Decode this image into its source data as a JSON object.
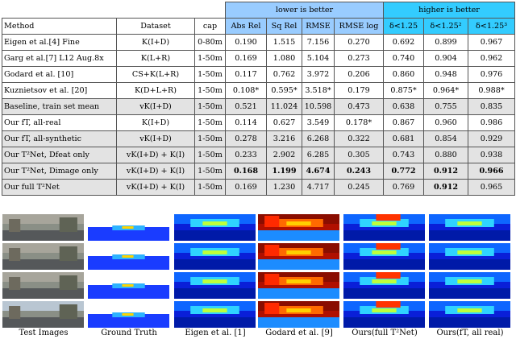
{
  "table": {
    "group_headers": {
      "lower": "lower is better",
      "higher": "higher is better"
    },
    "headers": [
      "Method",
      "Dataset",
      "cap",
      "Abs Rel",
      "Sq Rel",
      "RMSE",
      "RMSE log",
      "δ<1.25",
      "δ<1.25²",
      "δ<1.25³"
    ],
    "rows": [
      {
        "method": "Eigen et al.[4] Fine",
        "dataset": "K(I+D)",
        "cap": "0-80m",
        "abs_rel": "0.190",
        "sq_rel": "1.515",
        "rmse": "7.156",
        "rmse_log": "0.270",
        "d1": "0.692",
        "d2": "0.899",
        "d3": "0.967"
      },
      {
        "method": "Garg et al.[7] L12 Aug.8x",
        "dataset": "K(L+R)",
        "cap": "1-50m",
        "abs_rel": "0.169",
        "sq_rel": "1.080",
        "rmse": "5.104",
        "rmse_log": "0.273",
        "d1": "0.740",
        "d2": "0.904",
        "d3": "0.962"
      },
      {
        "method": "Godard et al. [10]",
        "dataset": "CS+K(L+R)",
        "cap": "1-50m",
        "abs_rel": "0.117",
        "sq_rel": "0.762",
        "rmse": "3.972",
        "rmse_log": "0.206",
        "d1": "0.860",
        "d2": "0.948",
        "d3": "0.976"
      },
      {
        "method": "Kuznietsov et al. [20]",
        "dataset": "K(D+L+R)",
        "cap": "1-50m",
        "abs_rel": "0.108*",
        "sq_rel": "0.595*",
        "rmse": "3.518*",
        "rmse_log": "0.179",
        "d1": "0.875*",
        "d2": "0.964*",
        "d3": "0.988*"
      },
      {
        "method": "Baseline, train set mean",
        "dataset": "vK(I+D)",
        "cap": "1-50m",
        "abs_rel": "0.521",
        "sq_rel": "11.024",
        "rmse": "10.598",
        "rmse_log": "0.473",
        "d1": "0.638",
        "d2": "0.755",
        "d3": "0.835"
      },
      {
        "method": "Our fT, all-real",
        "dataset": "K(I+D)",
        "cap": "1-50m",
        "abs_rel": "0.114",
        "sq_rel": "0.627",
        "rmse": "3.549",
        "rmse_log": "0.178*",
        "d1": "0.867",
        "d2": "0.960",
        "d3": "0.986"
      },
      {
        "method": "Our fT, all-synthetic",
        "dataset": "vK(I+D)",
        "cap": "1-50m",
        "abs_rel": "0.278",
        "sq_rel": "3.216",
        "rmse": "6.268",
        "rmse_log": "0.322",
        "d1": "0.681",
        "d2": "0.854",
        "d3": "0.929"
      },
      {
        "method": "Our T²Net, Dfeat only",
        "dataset": "vK(I+D) + K(I)",
        "cap": "1-50m",
        "abs_rel": "0.233",
        "sq_rel": "2.902",
        "rmse": "6.285",
        "rmse_log": "0.305",
        "d1": "0.743",
        "d2": "0.880",
        "d3": "0.938"
      },
      {
        "method": "Our T²Net, Dimage only",
        "dataset": "vK(I+D) + K(I)",
        "cap": "1-50m",
        "abs_rel": "0.168",
        "sq_rel": "1.199",
        "rmse": "4.674",
        "rmse_log": "0.243",
        "d1": "0.772",
        "d2": "0.912",
        "d3": "0.966"
      },
      {
        "method": "Our full T²Net",
        "dataset": "vK(I+D) + K(I)",
        "cap": "1-50m",
        "abs_rel": "0.169",
        "sq_rel": "1.230",
        "rmse": "4.717",
        "rmse_log": "0.245",
        "d1": "0.769",
        "d2": "0.912",
        "d3": "0.965"
      }
    ]
  },
  "figure": {
    "captions": [
      "Test Images",
      "Ground Truth",
      "Eigen et al. [1]",
      "Godard et al. [9]",
      "Ours(full T²Net)",
      "Ours(fT, all real)"
    ]
  }
}
